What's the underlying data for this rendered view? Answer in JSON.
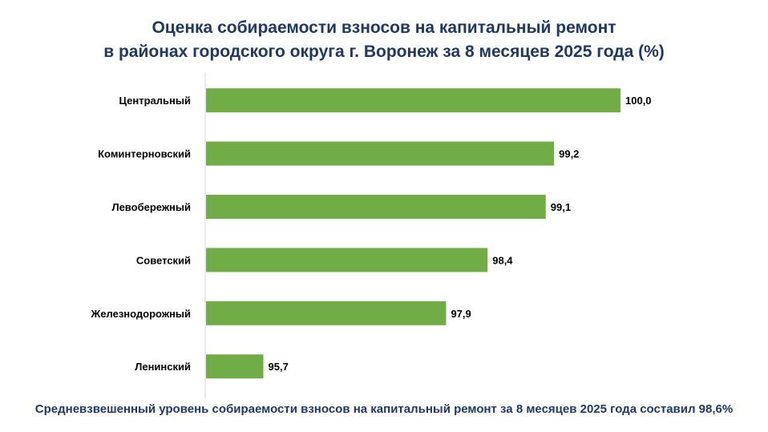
{
  "title": {
    "line1": "Оценка собираемости взносов на капитальный ремонт",
    "line2": "в районах городского округа г. Воронеж за 8 месяцев 2025 года (%)"
  },
  "footer": "Средневзвешенный уровень собираемости взносов на капитальный ремонт за 8 месяцев 2025 года составил 98,6%",
  "chart_data": {
    "type": "bar",
    "orientation": "horizontal",
    "categories": [
      "Центральный",
      "Коминтерновский",
      "Левобережный",
      "Советский",
      "Железнодорожный",
      "Ленинский"
    ],
    "values": [
      100.0,
      99.2,
      99.1,
      98.4,
      97.9,
      95.7
    ],
    "labels": [
      "100,0",
      "99,2",
      "99,1",
      "98,4",
      "97,9",
      "95,7"
    ],
    "xlim": [
      95,
      100
    ],
    "grid": false,
    "bar_color": "#70ad47",
    "axis_color": "#d9d9d9"
  }
}
